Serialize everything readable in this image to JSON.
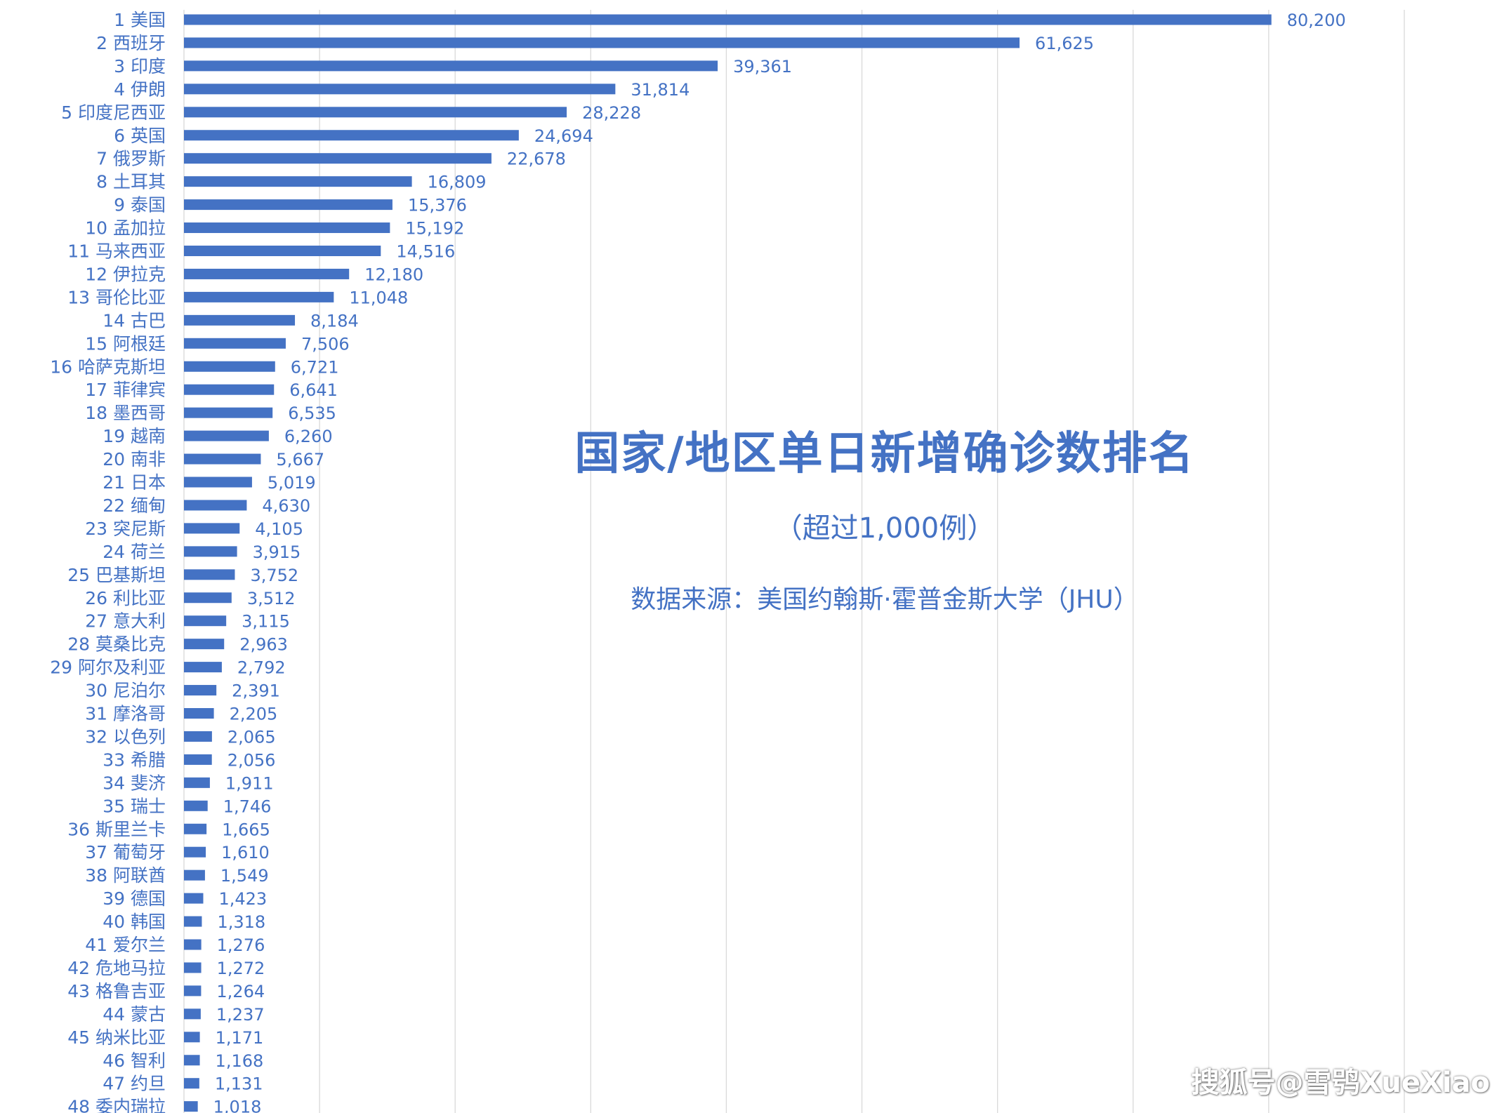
{
  "colors": {
    "bar": "#4472C4",
    "label": "#4472C4",
    "grid": "#D9D9D9"
  },
  "chart_data": {
    "type": "bar",
    "orientation": "horizontal",
    "title": "国家/地区单日新增确诊数排名",
    "subtitle": "（超过1,000例）",
    "source": "数据来源：美国约翰斯·霍普金斯大学（JHU）",
    "xlim": [
      0,
      90000
    ],
    "grid": "vertical",
    "legend": "none",
    "categories": [
      "1 美国",
      "2 西班牙",
      "3 印度",
      "4 伊朗",
      "5 印度尼西亚",
      "6 英国",
      "7 俄罗斯",
      "8 土耳其",
      "9 泰国",
      "10 孟加拉",
      "11 马来西亚",
      "12 伊拉克",
      "13 哥伦比亚",
      "14 古巴",
      "15 阿根廷",
      "16 哈萨克斯坦",
      "17 菲律宾",
      "18 墨西哥",
      "19 越南",
      "20 南非",
      "21 日本",
      "22 缅甸",
      "23 突尼斯",
      "24 荷兰",
      "25 巴基斯坦",
      "26 利比亚",
      "27 意大利",
      "28 莫桑比克",
      "29 阿尔及利亚",
      "30 尼泊尔",
      "31 摩洛哥",
      "32 以色列",
      "33 希腊",
      "34 斐济",
      "35 瑞士",
      "36 斯里兰卡",
      "37 葡萄牙",
      "38 阿联酋",
      "39 德国",
      "40 韩国",
      "41 爱尔兰",
      "42 危地马拉",
      "43 格鲁吉亚",
      "44 蒙古",
      "45 纳米比亚",
      "46 智利",
      "47 约旦",
      "48 委内瑞拉"
    ],
    "values": [
      80200,
      61625,
      39361,
      31814,
      28228,
      24694,
      22678,
      16809,
      15376,
      15192,
      14516,
      12180,
      11048,
      8184,
      7506,
      6721,
      6641,
      6535,
      6260,
      5667,
      5019,
      4630,
      4105,
      3915,
      3752,
      3512,
      3115,
      2963,
      2792,
      2391,
      2205,
      2065,
      2056,
      1911,
      1746,
      1665,
      1610,
      1549,
      1423,
      1318,
      1276,
      1272,
      1264,
      1237,
      1171,
      1168,
      1131,
      1018
    ],
    "value_labels": [
      "80,200",
      "61,625",
      "39,361",
      "31,814",
      "28,228",
      "24,694",
      "22,678",
      "16,809",
      "15,376",
      "15,192",
      "14,516",
      "12,180",
      "11,048",
      "8,184",
      "7,506",
      "6,721",
      "6,641",
      "6,535",
      "6,260",
      "5,667",
      "5,019",
      "4,630",
      "4,105",
      "3,915",
      "3,752",
      "3,512",
      "3,115",
      "2,963",
      "2,792",
      "2,391",
      "2,205",
      "2,065",
      "2,056",
      "1,911",
      "1,746",
      "1,665",
      "1,610",
      "1,549",
      "1,423",
      "1,318",
      "1,276",
      "1,272",
      "1,264",
      "1,237",
      "1,171",
      "1,168",
      "1,131",
      "1,018"
    ]
  },
  "watermark": "搜狐号@雪鸮XueXiao"
}
